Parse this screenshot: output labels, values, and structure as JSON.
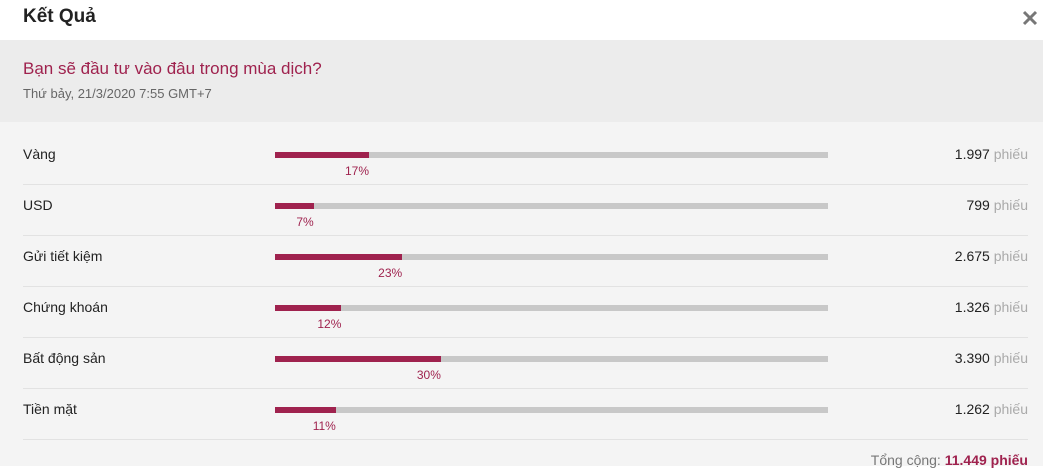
{
  "header": {
    "title": "Kết Quả"
  },
  "question": {
    "title": "Bạn sẽ đầu tư vào đâu trong mùa dịch?",
    "date": "Thứ bảy, 21/3/2020 7:55 GMT+7"
  },
  "results": {
    "rows": [
      {
        "label": "Vàng",
        "percent": 17,
        "percent_label": "17%",
        "votes": "1.997",
        "unit": "phiếu"
      },
      {
        "label": "USD",
        "percent": 7,
        "percent_label": "7%",
        "votes": "799",
        "unit": "phiếu"
      },
      {
        "label": "Gửi tiết kiệm",
        "percent": 23,
        "percent_label": "23%",
        "votes": "2.675",
        "unit": "phiếu"
      },
      {
        "label": "Chứng khoán",
        "percent": 12,
        "percent_label": "12%",
        "votes": "1.326",
        "unit": "phiếu"
      },
      {
        "label": "Bất động sản",
        "percent": 30,
        "percent_label": "30%",
        "votes": "3.390",
        "unit": "phiếu"
      },
      {
        "label": "Tiền mặt",
        "percent": 11,
        "percent_label": "11%",
        "votes": "1.262",
        "unit": "phiếu"
      }
    ]
  },
  "total": {
    "label": "Tổng cộng:",
    "value": "11.449 phiếu"
  }
}
